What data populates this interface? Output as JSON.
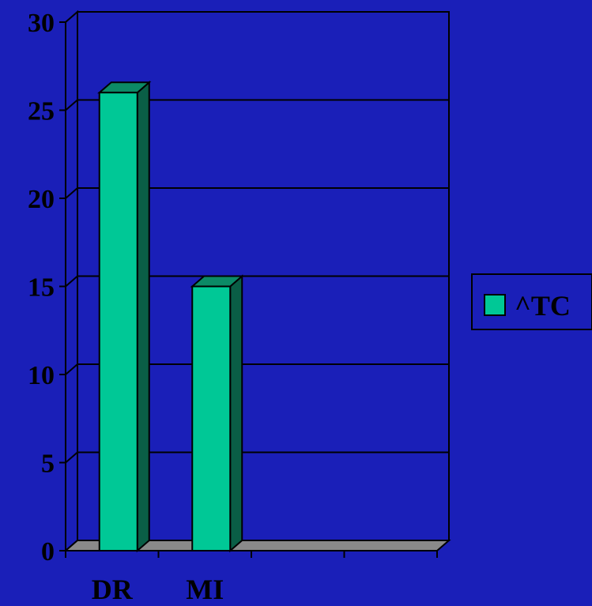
{
  "chart_data": {
    "type": "bar",
    "style": "3d-column",
    "categories": [
      "DR",
      "MI",
      "",
      ""
    ],
    "series": [
      {
        "name": "^TC",
        "values": [
          26,
          15,
          null,
          null
        ]
      }
    ],
    "ylim": [
      0,
      30
    ],
    "yticks": [
      0,
      5,
      10,
      15,
      20,
      25,
      30
    ],
    "xlabel": "",
    "ylabel": "",
    "grid": true,
    "legend_position": "right",
    "colors": {
      "background": "#1a1fb8",
      "bar_front": "#00c896",
      "bar_side": "#0a5e46",
      "floor": "#8a8a8a",
      "gridline": "#000000"
    }
  }
}
